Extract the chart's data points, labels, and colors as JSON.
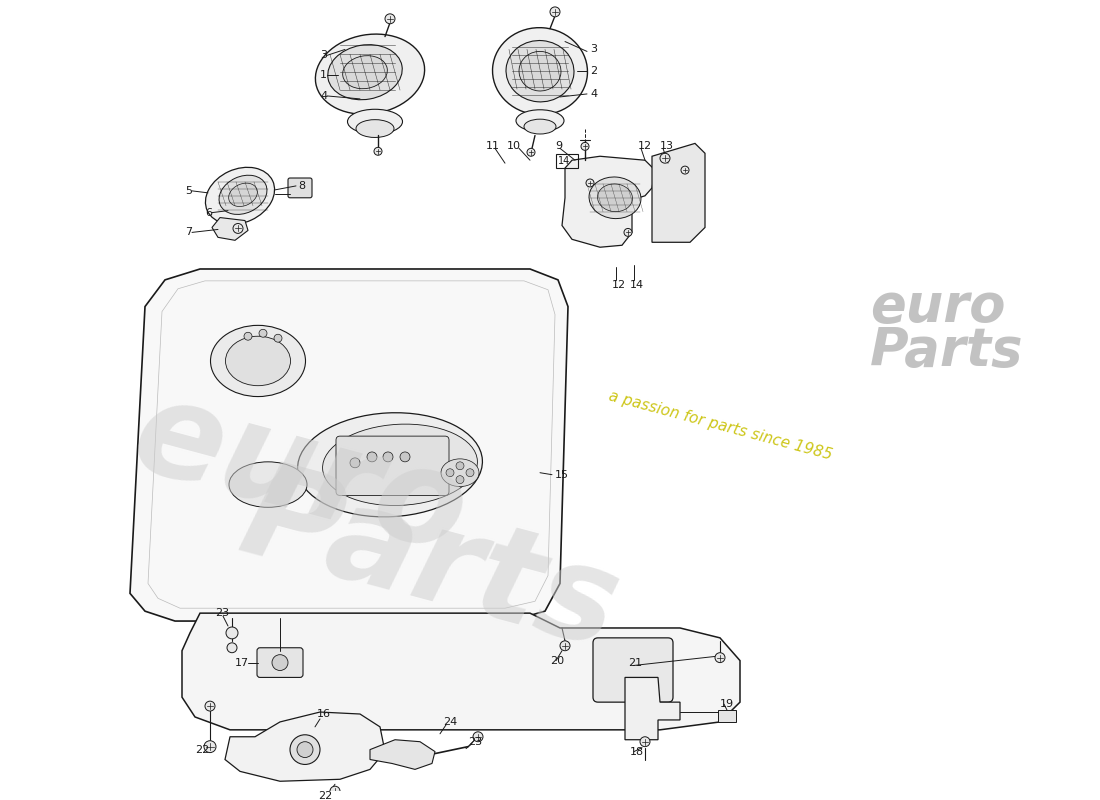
{
  "bg_color": "#ffffff",
  "line_color": "#1a1a1a",
  "text_color": "#1a1a1a",
  "wm1": "euro",
  "wm2": "Parts",
  "wm3": "a passion for parts since 1985",
  "figw": 11.0,
  "figh": 8.0
}
